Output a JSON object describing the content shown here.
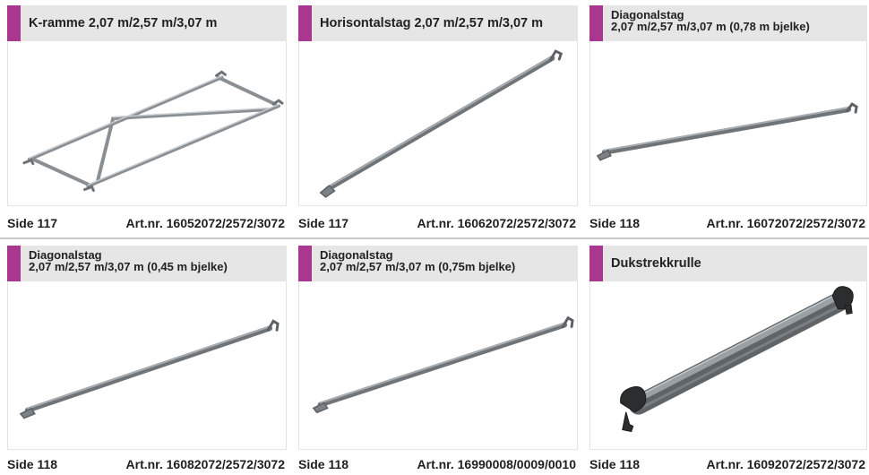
{
  "products": [
    {
      "title_lines": [
        "K-ramme 2,07 m/2,57 m/3,07 m"
      ],
      "side": "Side 117",
      "artnr": "Art.nr. 16052072/2572/3072",
      "image": "k-frame-icon"
    },
    {
      "title_lines": [
        "Horisontalstag 2,07 m/2,57 m/3,07 m"
      ],
      "side": "Side 117",
      "artnr": "Art.nr. 16062072/2572/3072",
      "image": "horizontal-brace-icon"
    },
    {
      "title_lines": [
        "Diagonalstag",
        "2,07 m/2,57 m/3,07 m (0,78 m bjelke)"
      ],
      "side": "Side 118",
      "artnr": "Art.nr. 16072072/2572/3072",
      "image": "diagonal-brace-icon"
    },
    {
      "title_lines": [
        "Diagonalstag",
        "2,07 m/2,57 m/3,07 m (0,45 m bjelke)"
      ],
      "side": "Side 118",
      "artnr": "Art.nr. 16082072/2572/3072",
      "image": "diagonal-brace-icon"
    },
    {
      "title_lines": [
        "Diagonalstag",
        "2,07 m/2,57 m/3,07 m (0,75m bjelke)"
      ],
      "side": "Side 118",
      "artnr": "Art.nr. 16990008/0009/0010",
      "image": "diagonal-brace-icon"
    },
    {
      "title_lines": [
        "Dukstrekkrulle"
      ],
      "side": "Side 118",
      "artnr": "Art.nr. 16092072/2572/3072",
      "image": "tarp-tension-roller-icon"
    }
  ],
  "colors": {
    "accent": "#a9378f",
    "header_bg": "#e6e6e6",
    "divider": "#c9c9c9"
  }
}
